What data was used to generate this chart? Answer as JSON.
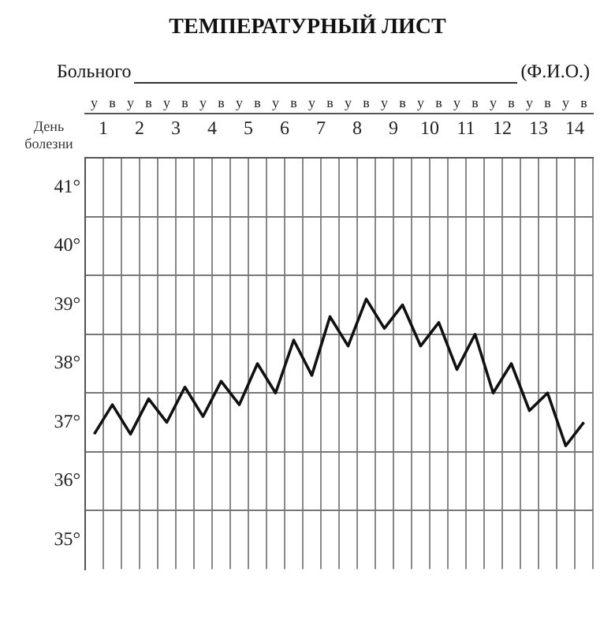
{
  "chart_data": {
    "type": "line",
    "title": "ТЕМПЕРАТУРНЫЙ ЛИСТ",
    "subtitle": "Больного",
    "annotations": [
      "(Ф.И.О.)"
    ],
    "x2label": "День болезни",
    "x2lim": [
      0.5,
      14.5
    ],
    "x2ticks": [
      1,
      2,
      3,
      4,
      5,
      6,
      7,
      8,
      9,
      10,
      11,
      12,
      13,
      14
    ],
    "categories": [
      "у",
      "в",
      "у",
      "в",
      "у",
      "в",
      "у",
      "в",
      "у",
      "в",
      "у",
      "в",
      "у",
      "в",
      "у",
      "в",
      "у",
      "в",
      "у",
      "в",
      "у",
      "в",
      "у",
      "в",
      "у",
      "в",
      "у",
      "в"
    ],
    "series": [
      {
        "color": "#111111",
        "values": [
          36.8,
          37.3,
          36.8,
          37.4,
          37.0,
          37.6,
          37.1,
          37.7,
          37.3,
          38.0,
          37.5,
          38.4,
          37.8,
          38.8,
          38.3,
          39.1,
          38.6,
          39.0,
          38.3,
          38.7,
          37.9,
          38.5,
          37.5,
          38.0,
          37.2,
          37.5,
          36.6,
          37.0
        ]
      }
    ],
    "ylim": [
      34.5,
      41.5
    ],
    "yticks": [
      {
        "value": 35,
        "label": "35°"
      },
      {
        "value": 35.5,
        "label": null
      },
      {
        "value": 36,
        "label": "36°"
      },
      {
        "value": 36.5,
        "label": null
      },
      {
        "value": 37,
        "label": "37°"
      },
      {
        "value": 37.5,
        "label": null
      },
      {
        "value": 38,
        "label": "38°"
      },
      {
        "value": 38.5,
        "label": null
      },
      {
        "value": 39,
        "label": "39°"
      },
      {
        "value": 39.5,
        "label": null
      },
      {
        "value": 40,
        "label": "40°"
      },
      {
        "value": 40.5,
        "label": null
      },
      {
        "value": 41,
        "label": "41°"
      }
    ],
    "grid": true,
    "legend": false,
    "marker": "none",
    "line_style": "solid"
  }
}
